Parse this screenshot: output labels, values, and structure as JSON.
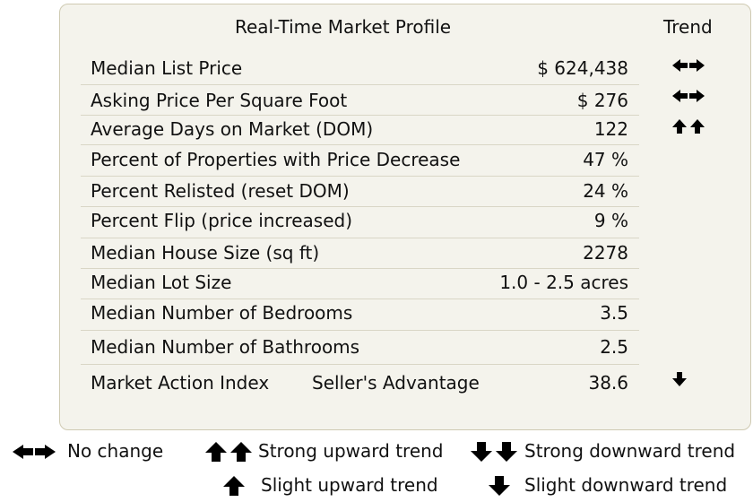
{
  "title": "Real-Time Market Profile",
  "trend_header": "Trend",
  "rows": [
    {
      "label": "Median List Price",
      "value": "$ 624,438",
      "trend": "no-change"
    },
    {
      "label": "Asking Price Per Square Foot",
      "value": "$ 276",
      "trend": "no-change"
    },
    {
      "label": "Average Days on Market (DOM)",
      "value": "122",
      "trend": "strong-upward"
    },
    {
      "label": "Percent of Properties with Price Decrease",
      "value": "47 %",
      "trend": ""
    },
    {
      "label": "Percent Relisted (reset DOM)",
      "value": "24 %",
      "trend": ""
    },
    {
      "label": "Percent Flip (price increased)",
      "value": "9 %",
      "trend": ""
    },
    {
      "label": "Median House Size (sq ft)",
      "value": "2278",
      "trend": ""
    },
    {
      "label": "Median Lot Size",
      "value": "1.0 - 2.5 acres",
      "trend": ""
    },
    {
      "label": "Median Number of Bedrooms",
      "value": "3.5",
      "trend": ""
    },
    {
      "label": "Median Number of Bathrooms",
      "value": "2.5",
      "trend": ""
    },
    {
      "label": "Market Action Index",
      "sublabel": "Seller's Advantage",
      "value": "38.6",
      "trend": "slight-downward"
    }
  ],
  "legend": {
    "no_change": "No change",
    "strong_upward": "Strong upward trend",
    "strong_downward": "Strong downward trend",
    "slight_upward": "Slight upward trend",
    "slight_downward": "Slight downward trend"
  },
  "icons": {
    "no_change": "double-horizontal-arrow-icon",
    "strong_upward": "double-up-arrow-icon",
    "strong_downward": "double-down-arrow-icon",
    "slight_upward": "up-arrow-icon",
    "slight_downward": "down-arrow-icon"
  }
}
